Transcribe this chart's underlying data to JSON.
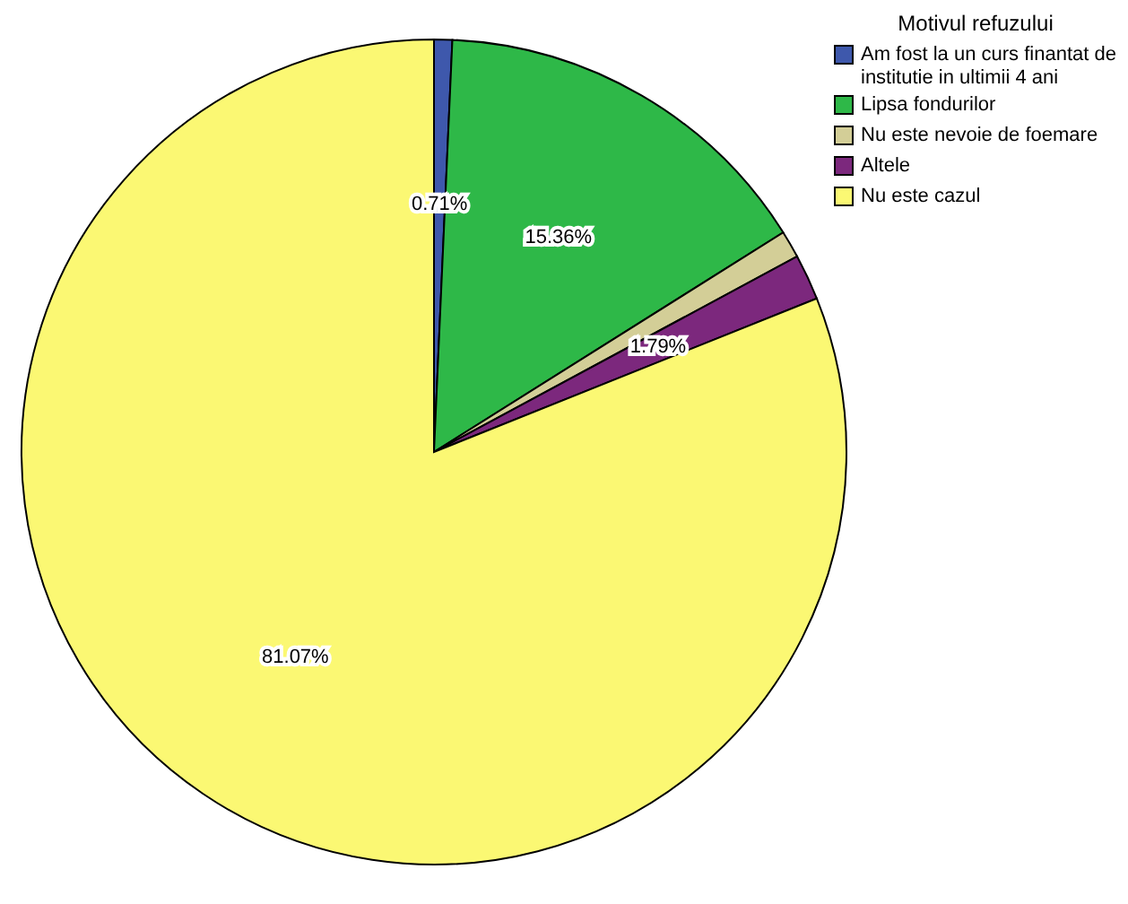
{
  "chart_data": {
    "type": "pie",
    "legend_title": "Motivul refuzului",
    "legend": "top right",
    "categories": [
      "Am fost la un curs finantat de institutie in ultimii 4 ani",
      "Lipsa fondurilor",
      "Nu este nevoie de foemare",
      "Altele",
      "Nu este cazul"
    ],
    "values": [
      0.71,
      15.36,
      1.07,
      1.79,
      81.07
    ],
    "colors": [
      "#3e58ac",
      "#2eb848",
      "#d3ce97",
      "#7c287d",
      "#fbf873"
    ],
    "value_labels": [
      "0.71%",
      "15.36%",
      null,
      "1.79%",
      "81.07%"
    ]
  }
}
